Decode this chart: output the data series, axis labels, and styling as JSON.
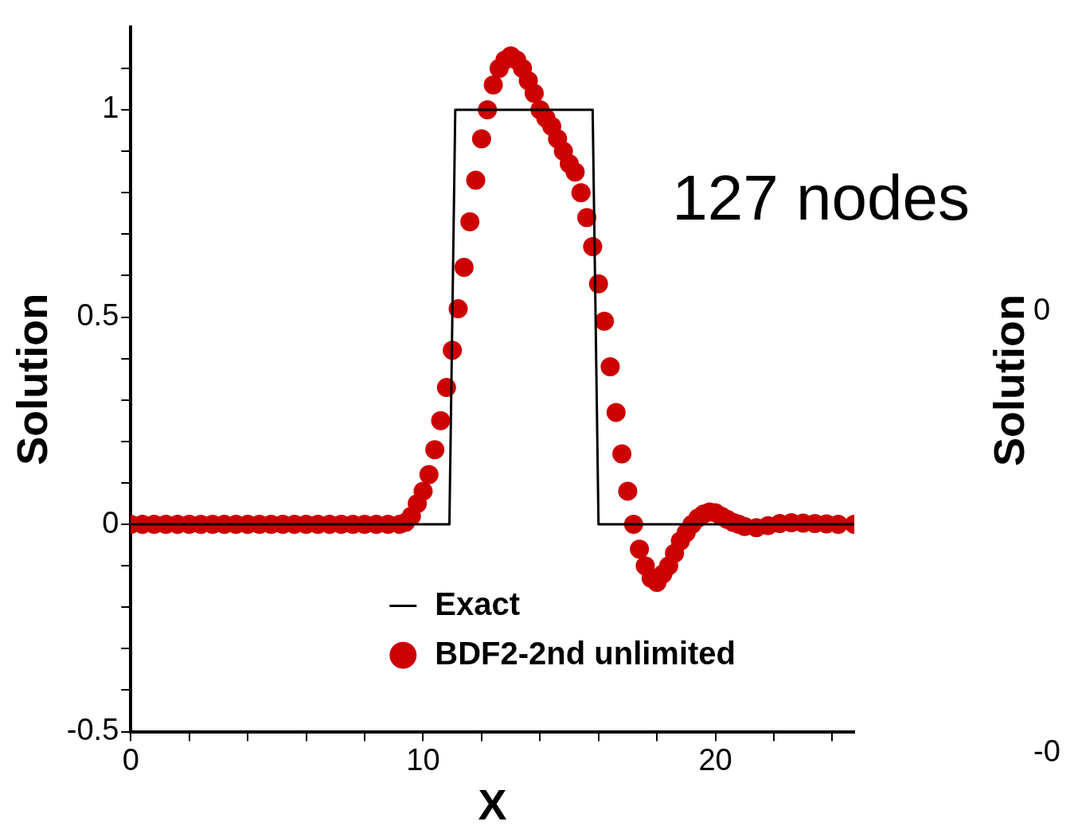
{
  "chart_data": [
    {
      "type": "scatter",
      "xlabel": "X",
      "ylabel": "Solution",
      "annotations": [
        "127 nodes"
      ],
      "xlim": [
        0,
        24.75
      ],
      "ylim": [
        -0.5,
        1.2
      ],
      "xticks": [
        0,
        {
          "value": 2,
          "label": null
        },
        {
          "value": 4,
          "label": null
        },
        {
          "value": 6,
          "label": null
        },
        {
          "value": 8,
          "label": null
        },
        10,
        {
          "value": 12,
          "label": null
        },
        {
          "value": 14,
          "label": null
        },
        {
          "value": 16,
          "label": null
        },
        {
          "value": 18,
          "label": null
        },
        20,
        {
          "value": 22,
          "label": null
        },
        {
          "value": 24,
          "label": null
        }
      ],
      "yticks": [
        -0.5,
        {
          "value": -0.4,
          "label": null
        },
        {
          "value": -0.3,
          "label": null
        },
        {
          "value": -0.2,
          "label": null
        },
        {
          "value": -0.1,
          "label": null
        },
        0,
        {
          "value": 0.1,
          "label": null
        },
        {
          "value": 0.2,
          "label": null
        },
        {
          "value": 0.3,
          "label": null
        },
        {
          "value": 0.4,
          "label": null
        },
        0.5,
        {
          "value": 0.6,
          "label": null
        },
        {
          "value": 0.7,
          "label": null
        },
        {
          "value": 0.8,
          "label": null
        },
        {
          "value": 0.9,
          "label": null
        },
        1,
        {
          "value": 1.1,
          "label": null
        }
      ],
      "legend": "bottom right",
      "grid": false,
      "series": [
        {
          "name": "Exact",
          "type": "line",
          "line_style": "solid",
          "color": "#000000",
          "x": [
            0,
            10.9,
            11.1,
            15.8,
            16.0,
            24.75
          ],
          "values": [
            0,
            0,
            1,
            1,
            0,
            0
          ]
        },
        {
          "name": "BDF2-2nd unlimited",
          "type": "scatter",
          "marker": "circle",
          "color": "#cc0000",
          "x": [
            0,
            0.4,
            0.8,
            1.2,
            1.6,
            2.0,
            2.4,
            2.8,
            3.2,
            3.6,
            4.0,
            4.4,
            4.8,
            5.2,
            5.6,
            6.0,
            6.4,
            6.8,
            7.2,
            7.6,
            8.0,
            8.4,
            8.8,
            9.2,
            9.4,
            9.6,
            9.8,
            10.0,
            10.2,
            10.4,
            10.6,
            10.8,
            11.0,
            11.2,
            11.4,
            11.6,
            11.8,
            12.0,
            12.2,
            12.4,
            12.6,
            12.8,
            13.0,
            13.2,
            13.4,
            13.6,
            13.8,
            14.0,
            14.2,
            14.4,
            14.6,
            14.8,
            15.0,
            15.2,
            15.4,
            15.6,
            15.8,
            16.0,
            16.2,
            16.4,
            16.6,
            16.8,
            17.0,
            17.2,
            17.4,
            17.6,
            17.8,
            18.0,
            18.2,
            18.4,
            18.6,
            18.8,
            19.0,
            19.2,
            19.4,
            19.6,
            19.8,
            20.0,
            20.2,
            20.4,
            20.6,
            20.8,
            21.0,
            21.4,
            21.8,
            22.2,
            22.6,
            23.0,
            23.4,
            23.8,
            24.2,
            24.75
          ],
          "values": [
            0,
            0,
            0,
            0,
            0,
            0,
            0,
            0,
            0,
            0,
            0,
            0,
            0,
            0,
            0,
            0,
            0,
            0,
            0,
            0,
            0,
            0,
            0,
            0,
            0.005,
            0.02,
            0.05,
            0.08,
            0.12,
            0.18,
            0.25,
            0.33,
            0.42,
            0.52,
            0.62,
            0.73,
            0.83,
            0.93,
            1.0,
            1.06,
            1.1,
            1.12,
            1.13,
            1.12,
            1.1,
            1.07,
            1.04,
            1.0,
            0.98,
            0.96,
            0.93,
            0.9,
            0.87,
            0.85,
            0.8,
            0.74,
            0.67,
            0.58,
            0.49,
            0.38,
            0.27,
            0.17,
            0.08,
            0.0,
            -0.06,
            -0.1,
            -0.13,
            -0.14,
            -0.12,
            -0.1,
            -0.07,
            -0.04,
            -0.02,
            0,
            0.015,
            0.025,
            0.03,
            0.028,
            0.02,
            0.012,
            0.005,
            0,
            -0.005,
            -0.008,
            -0.003,
            0.002,
            0.004,
            0.003,
            0.002,
            0.001,
            0,
            0
          ]
        }
      ]
    },
    {
      "type": "other",
      "ylabel": "Solution",
      "annotations": [
        "0",
        "-0"
      ]
    }
  ]
}
